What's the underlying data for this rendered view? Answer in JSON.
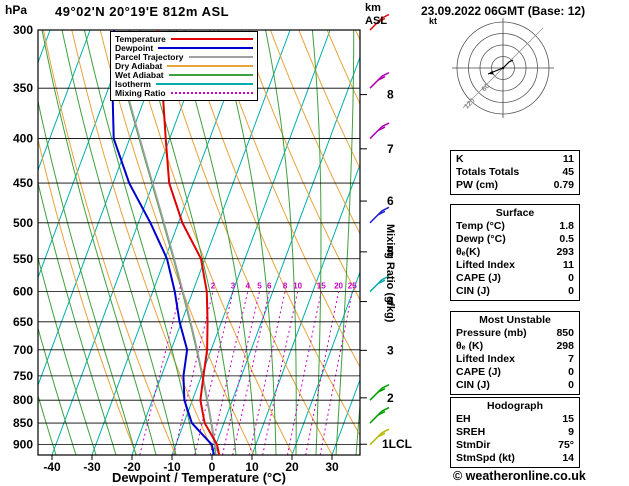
{
  "header": {
    "station_title": "49°02'N 20°19'E 812m ASL",
    "run_datetime": "23.09.2022 06GMT (Base: 12)"
  },
  "axes": {
    "pressure_unit": "hPa",
    "alt_unit_top": "km",
    "alt_unit_bottom": "ASL",
    "x_title": "Dewpoint / Temperature (°C)",
    "mixing_ratio_title": "Mixing Ratio (g/kg)",
    "lcl_label": "1LCL"
  },
  "legend": [
    {
      "label": "Temperature",
      "color": "#E00000",
      "dotted": false
    },
    {
      "label": "Dewpoint",
      "color": "#0000CD",
      "dotted": false
    },
    {
      "label": "Parcel Trajectory",
      "color": "#A0A0A0",
      "dotted": false
    },
    {
      "label": "Dry Adiabat",
      "color": "#E8A33C",
      "dotted": false
    },
    {
      "label": "Wet Adiabat",
      "color": "#3FA03F",
      "dotted": false
    },
    {
      "label": "Isotherm",
      "color": "#00AEAE",
      "dotted": false
    },
    {
      "label": "Mixing Ratio",
      "color": "#C800C8",
      "dotted": true
    }
  ],
  "chart_data": {
    "type": "skewt-log-p-sounding",
    "title": "49°02'N 20°19'E 812m ASL",
    "valid": "23.09.2022 06GMT (Base: 12)",
    "pressure_levels_hpa": [
      300,
      350,
      400,
      450,
      500,
      550,
      600,
      650,
      700,
      750,
      800,
      850,
      900
    ],
    "temp_ticks_c": [
      -40,
      -30,
      -20,
      -10,
      0,
      10,
      20,
      30
    ],
    "km_levels": [
      {
        "label": "8",
        "p": 356
      },
      {
        "label": "7",
        "p": 411
      },
      {
        "label": "6",
        "p": 472
      },
      {
        "label": "5",
        "p": 540
      },
      {
        "label": "4",
        "p": 616
      },
      {
        "label": "3",
        "p": 701
      },
      {
        "label": "2",
        "p": 795
      }
    ],
    "lcl": {
      "label": "1LCL",
      "p": 899
    },
    "mixing_ratio_gkg": [
      1,
      2,
      3,
      4,
      5,
      6,
      8,
      10,
      15,
      20,
      25
    ],
    "temperature_profile": [
      [
        925,
        1.8
      ],
      [
        900,
        0.3
      ],
      [
        850,
        -4.8
      ],
      [
        800,
        -8
      ],
      [
        750,
        -9.5
      ],
      [
        700,
        -11
      ],
      [
        650,
        -13.5
      ],
      [
        600,
        -16.5
      ],
      [
        550,
        -21
      ],
      [
        500,
        -29
      ],
      [
        450,
        -36
      ],
      [
        400,
        -41
      ],
      [
        350,
        -46.5
      ],
      [
        300,
        -53
      ]
    ],
    "dewpoint_profile": [
      [
        925,
        0.5
      ],
      [
        900,
        -1
      ],
      [
        850,
        -8
      ],
      [
        800,
        -12
      ],
      [
        750,
        -14.5
      ],
      [
        700,
        -16
      ],
      [
        650,
        -20.5
      ],
      [
        600,
        -24.5
      ],
      [
        550,
        -29.5
      ],
      [
        500,
        -37
      ],
      [
        450,
        -46
      ],
      [
        400,
        -54
      ],
      [
        350,
        -59
      ],
      [
        300,
        -64
      ]
    ],
    "parcel_start": {
      "p": 925,
      "t": 1.8,
      "td": 0.5
    }
  },
  "wind_barbs": [
    {
      "p": 300,
      "color": "#E00000"
    },
    {
      "p": 350,
      "color": "#B000B0"
    },
    {
      "p": 400,
      "color": "#B000B0"
    },
    {
      "p": 500,
      "color": "#2020D0"
    },
    {
      "p": 600,
      "color": "#00A8A8"
    },
    {
      "p": 800,
      "color": "#00A000"
    },
    {
      "p": 850,
      "color": "#00A000"
    },
    {
      "p": 900,
      "color": "#B8B800"
    }
  ],
  "hodograph": {
    "unit": "kt",
    "ring_labels": [
      "60",
      "120"
    ],
    "storm_dir": "75°",
    "storm_spd_kt": "14"
  },
  "tables": [
    {
      "header": null,
      "rows": [
        [
          "K",
          "11"
        ],
        [
          "Totals Totals",
          "45"
        ],
        [
          "PW (cm)",
          "0.79"
        ]
      ]
    },
    {
      "header": "Surface",
      "rows": [
        [
          "Temp (°C)",
          "1.8"
        ],
        [
          "Dewp (°C)",
          "0.5"
        ],
        [
          "θₑ(K)",
          "293"
        ],
        [
          "Lifted Index",
          "11"
        ],
        [
          "CAPE (J)",
          "0"
        ],
        [
          "CIN (J)",
          "0"
        ]
      ]
    },
    {
      "header": "Most Unstable",
      "rows": [
        [
          "Pressure (mb)",
          "850"
        ],
        [
          "θₑ (K)",
          "298"
        ],
        [
          "Lifted Index",
          "7"
        ],
        [
          "CAPE (J)",
          "0"
        ],
        [
          "CIN (J)",
          "0"
        ]
      ]
    },
    {
      "header": "Hodograph",
      "rows": [
        [
          "EH",
          "15"
        ],
        [
          "SREH",
          "9"
        ],
        [
          "StmDir",
          "75°"
        ],
        [
          "StmSpd (kt)",
          "14"
        ]
      ]
    }
  ],
  "footer": {
    "copyright": "© weatheronline.co.uk"
  },
  "colors": {
    "temperature": "#E00000",
    "dewpoint": "#0000CD",
    "parcel": "#A0A0A0",
    "dry_adiabat": "#E8A33C",
    "wet_adiabat": "#3FA03F",
    "isotherm": "#00AEAE",
    "mixing_ratio": "#C800C8",
    "grid": "#000000"
  }
}
